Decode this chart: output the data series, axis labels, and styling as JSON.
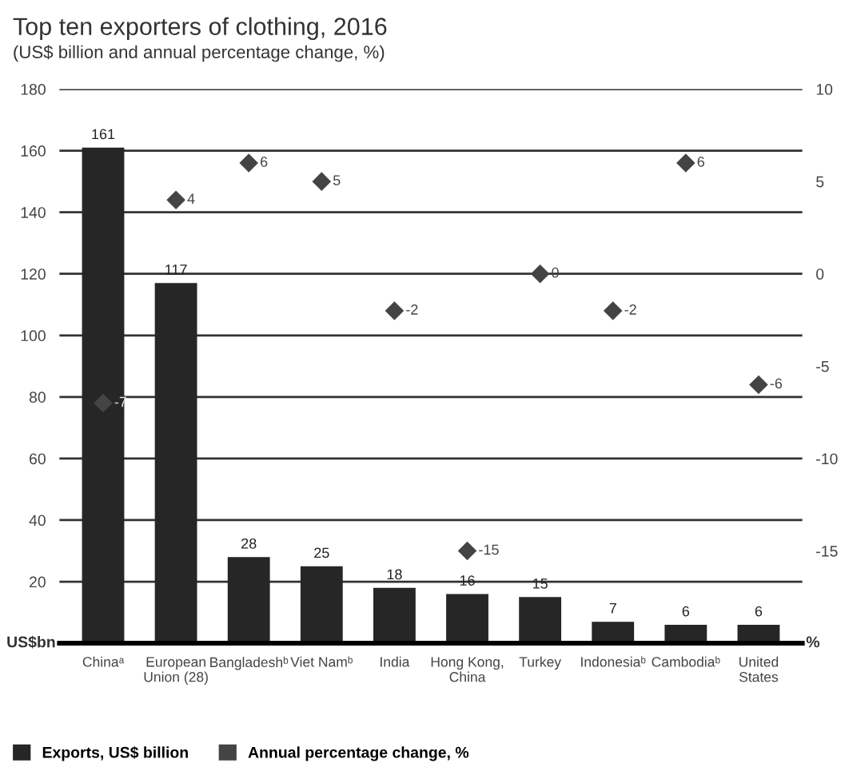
{
  "chart_data": {
    "type": "bar",
    "title": "Top ten exporters of clothing, 2016",
    "subtitle": "(US$ billion and annual percentage change, %)",
    "ylabel": "US$bn",
    "y2label": "%",
    "categories": [
      "Chinaᵃ",
      "European\nUnion (28)",
      "Bangladeshᵇ",
      "Viet Namᵇ",
      "India",
      "Hong Kong,\nChina",
      "Turkey",
      "Indonesiaᵇ",
      "Cambodiaᵇ",
      "United\nStates"
    ],
    "series": [
      {
        "name": "Exports, US$ billion",
        "color": "#262626",
        "values": [
          161,
          117,
          28,
          25,
          18,
          16,
          15,
          7,
          6,
          6
        ]
      },
      {
        "name": "Annual percentage change, %",
        "type": "scatter",
        "axis": "y2",
        "color": "#444444",
        "marker": "diamond",
        "values": [
          -7,
          4,
          6,
          5,
          -2,
          -15,
          0,
          -2,
          6,
          -6
        ]
      }
    ],
    "ylim": [
      0,
      180
    ],
    "yticks": [
      {
        "value": 0,
        "label": null
      },
      20,
      40,
      60,
      80,
      100,
      120,
      140,
      160,
      180
    ],
    "y2lim": [
      -20,
      10
    ],
    "y2ticks": [
      -15,
      -10,
      -5,
      0,
      5,
      10
    ],
    "grid": "y",
    "legend": "bottom",
    "data_labels": true
  }
}
